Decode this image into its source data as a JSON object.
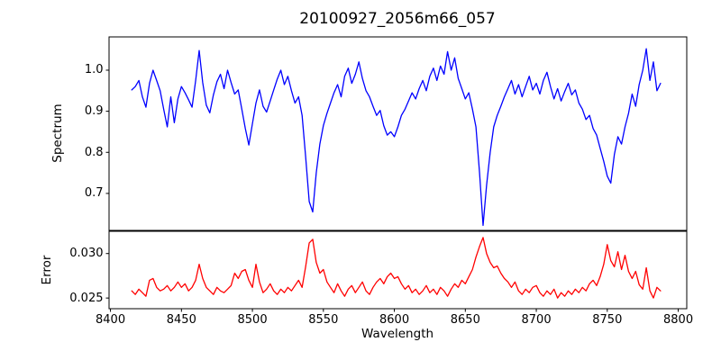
{
  "figure": {
    "background": "#ffffff",
    "text_color": "#000000"
  },
  "chart_data": {
    "type": "line",
    "title": "20100927_2056m66_057",
    "xlabel": "Wavelength",
    "x_range": [
      8399,
      8806
    ],
    "x_ticks": [
      8400,
      8450,
      8500,
      8550,
      8600,
      8650,
      8700,
      8750,
      8800
    ],
    "x_tick_labels": [
      "8400",
      "8450",
      "8500",
      "8550",
      "8600",
      "8650",
      "8700",
      "8750",
      "8800"
    ],
    "grid": false,
    "legend": "none",
    "panels": [
      {
        "name": "spectrum",
        "ylabel": "Spectrum",
        "y_range": [
          0.61,
          1.081
        ],
        "y_ticks": [
          0.7,
          0.8,
          0.9,
          1.0
        ],
        "y_tick_labels": [
          "0.7",
          "0.8",
          "0.9",
          "1.0"
        ],
        "line_color": "#0000ff",
        "features": "Ca II triplet absorption lines: depth 0.82 at 8498, depth 0.655 at 8542, depth 0.62 at 8662, broad dip to 0.72 at 8750, shallow dip to 0.84 at 8598, continuum near 1.0",
        "series": {
          "x_start": 8415,
          "x_step": 2.5,
          "values": [
            0.952,
            0.96,
            0.975,
            0.935,
            0.91,
            0.968,
            1.0,
            0.975,
            0.95,
            0.905,
            0.862,
            0.935,
            0.872,
            0.93,
            0.96,
            0.945,
            0.928,
            0.91,
            0.975,
            1.048,
            0.97,
            0.915,
            0.896,
            0.94,
            0.972,
            0.99,
            0.955,
            1.0,
            0.97,
            0.942,
            0.952,
            0.905,
            0.858,
            0.818,
            0.87,
            0.92,
            0.952,
            0.912,
            0.898,
            0.925,
            0.952,
            0.978,
            1.0,
            0.965,
            0.985,
            0.95,
            0.92,
            0.935,
            0.89,
            0.79,
            0.68,
            0.655,
            0.75,
            0.82,
            0.865,
            0.895,
            0.92,
            0.945,
            0.965,
            0.935,
            0.985,
            1.005,
            0.968,
            0.99,
            1.02,
            0.98,
            0.95,
            0.935,
            0.912,
            0.89,
            0.902,
            0.865,
            0.842,
            0.85,
            0.838,
            0.862,
            0.89,
            0.905,
            0.925,
            0.945,
            0.93,
            0.955,
            0.975,
            0.95,
            0.985,
            1.005,
            0.975,
            1.01,
            0.99,
            1.045,
            1.0,
            1.03,
            0.98,
            0.955,
            0.93,
            0.945,
            0.905,
            0.862,
            0.75,
            0.622,
            0.72,
            0.8,
            0.862,
            0.89,
            0.912,
            0.935,
            0.955,
            0.975,
            0.942,
            0.965,
            0.935,
            0.96,
            0.985,
            0.952,
            0.968,
            0.942,
            0.975,
            0.995,
            0.96,
            0.93,
            0.955,
            0.925,
            0.948,
            0.968,
            0.94,
            0.952,
            0.92,
            0.905,
            0.88,
            0.89,
            0.858,
            0.842,
            0.81,
            0.778,
            0.742,
            0.725,
            0.795,
            0.838,
            0.82,
            0.862,
            0.895,
            0.942,
            0.912,
            0.965,
            1.0,
            1.052,
            0.975,
            1.02,
            0.95,
            0.968
          ]
        }
      },
      {
        "name": "error",
        "ylabel": "Error",
        "y_range": [
          0.0238,
          0.0325
        ],
        "y_ticks": [
          0.025,
          0.03
        ],
        "y_tick_labels": [
          "0.025",
          "0.030"
        ],
        "line_color": "#ff0000",
        "features": "baseline near 0.026 with peaks 0.0316 at 8542, 0.0318 at 8662, spike cluster 0.031/0.030 around 8750-8763, small bumps at 8430, 8463, 8490-8505, 8598",
        "series": {
          "x_start": 8415,
          "x_step": 2.5,
          "values": [
            0.0258,
            0.0254,
            0.026,
            0.0256,
            0.0252,
            0.027,
            0.0272,
            0.0262,
            0.0258,
            0.026,
            0.0264,
            0.0258,
            0.0262,
            0.0268,
            0.0262,
            0.0266,
            0.0258,
            0.0262,
            0.027,
            0.0288,
            0.0272,
            0.0262,
            0.0258,
            0.0254,
            0.0262,
            0.0258,
            0.0256,
            0.026,
            0.0264,
            0.0278,
            0.0272,
            0.028,
            0.0282,
            0.027,
            0.0262,
            0.0288,
            0.0268,
            0.0256,
            0.026,
            0.0266,
            0.0258,
            0.0254,
            0.026,
            0.0256,
            0.0262,
            0.0258,
            0.0264,
            0.027,
            0.0262,
            0.0285,
            0.0312,
            0.0316,
            0.029,
            0.0278,
            0.0282,
            0.0268,
            0.0262,
            0.0256,
            0.0266,
            0.0258,
            0.0252,
            0.026,
            0.0264,
            0.0256,
            0.0262,
            0.0268,
            0.0258,
            0.0254,
            0.0262,
            0.0268,
            0.0272,
            0.0266,
            0.0274,
            0.0278,
            0.0272,
            0.0274,
            0.0266,
            0.026,
            0.0264,
            0.0256,
            0.026,
            0.0254,
            0.0258,
            0.0264,
            0.0256,
            0.026,
            0.0254,
            0.0262,
            0.0258,
            0.0252,
            0.026,
            0.0266,
            0.0262,
            0.027,
            0.0266,
            0.0274,
            0.0282,
            0.0296,
            0.0308,
            0.0318,
            0.03,
            0.029,
            0.0284,
            0.0286,
            0.0278,
            0.0272,
            0.0268,
            0.0262,
            0.0268,
            0.0258,
            0.0254,
            0.026,
            0.0256,
            0.0262,
            0.0264,
            0.0256,
            0.0252,
            0.0258,
            0.0254,
            0.026,
            0.025,
            0.0256,
            0.0252,
            0.0258,
            0.0254,
            0.026,
            0.0256,
            0.0262,
            0.0258,
            0.0266,
            0.027,
            0.0264,
            0.0274,
            0.0288,
            0.031,
            0.0292,
            0.0285,
            0.0302,
            0.0282,
            0.0298,
            0.028,
            0.0272,
            0.028,
            0.0265,
            0.026,
            0.0284,
            0.0258,
            0.025,
            0.0262,
            0.0258
          ]
        }
      }
    ]
  }
}
